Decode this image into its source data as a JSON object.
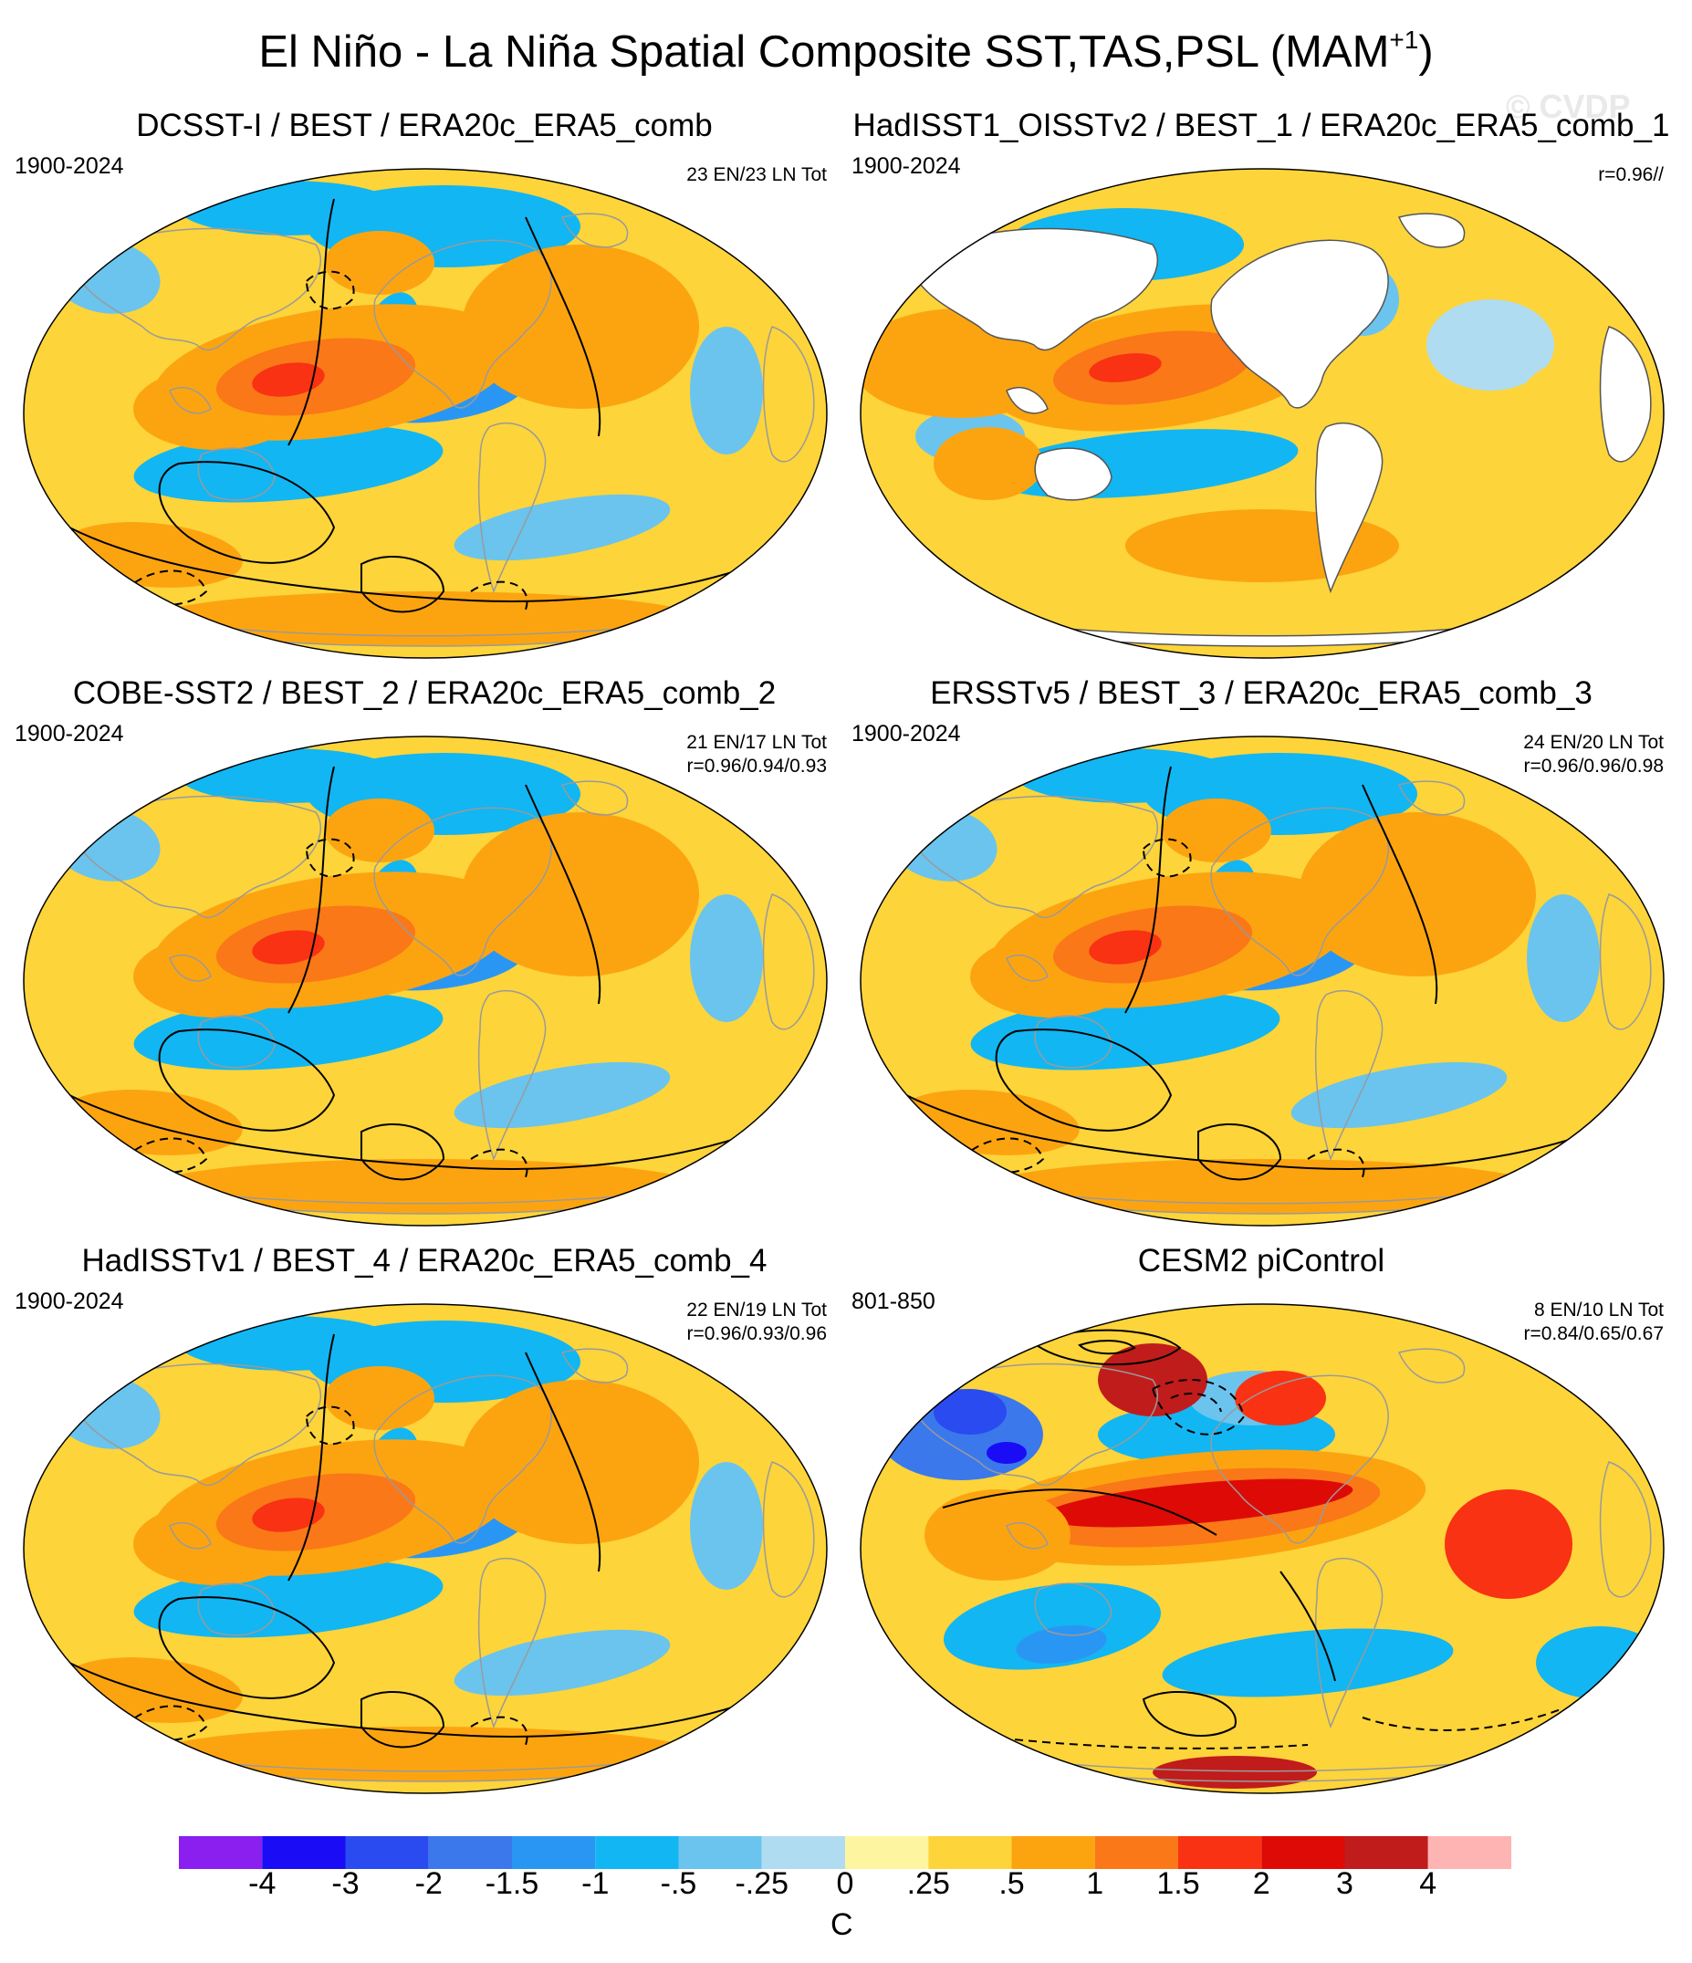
{
  "title": {
    "text": "El Niño - La Niña Spatial Composite SST,TAS,PSL (MAM",
    "superscript": "+1",
    "close": ")"
  },
  "watermark": "© CVDP",
  "panels": [
    {
      "title": "DCSST-I / BEST / ERA20c_ERA5_comb",
      "years": "1900-2024",
      "count": "23 EN/23 LN Tot",
      "corr": "",
      "land_masked": false,
      "pattern": "obs"
    },
    {
      "title": "HadISST1_OISSTv2 / BEST_1 / ERA20c_ERA5_comb_1",
      "years": "1900-2024",
      "count": "",
      "corr": "r=0.96//",
      "land_masked": true,
      "pattern": "sst-only"
    },
    {
      "title": "COBE-SST2 / BEST_2 / ERA20c_ERA5_comb_2",
      "years": "1900-2024",
      "count": "21 EN/17 LN Tot",
      "corr": "r=0.96/0.94/0.93",
      "land_masked": false,
      "pattern": "obs"
    },
    {
      "title": "ERSSTv5 / BEST_3 / ERA20c_ERA5_comb_3",
      "years": "1900-2024",
      "count": "24 EN/20 LN Tot",
      "corr": "r=0.96/0.96/0.98",
      "land_masked": false,
      "pattern": "obs"
    },
    {
      "title": "HadISSTv1 / BEST_4 / ERA20c_ERA5_comb_4",
      "years": "1900-2024",
      "count": "22 EN/19 LN Tot",
      "corr": "r=0.96/0.93/0.96",
      "land_masked": false,
      "pattern": "obs"
    },
    {
      "title": "CESM2 piControl",
      "years": "801-850",
      "count": "8 EN/10 LN Tot",
      "corr": "r=0.84/0.65/0.67",
      "land_masked": false,
      "pattern": "model"
    }
  ],
  "colorbar": {
    "colors": [
      "#8a1ff0",
      "#1a0cf5",
      "#2a4bf0",
      "#3a78ec",
      "#2a96f4",
      "#12b6f2",
      "#6ac4ee",
      "#b0dcf2",
      "#fdf5a0",
      "#fdd43a",
      "#fca410",
      "#fa7818",
      "#f83212",
      "#de0a06",
      "#c01c1c",
      "#ffb4b4"
    ],
    "labels": [
      "-4",
      "-3",
      "-2",
      "-1.5",
      "-1",
      "-.5",
      "-.25",
      "0",
      ".25",
      ".5",
      "1",
      "1.5",
      "2",
      "3",
      "4"
    ],
    "units": "C"
  }
}
